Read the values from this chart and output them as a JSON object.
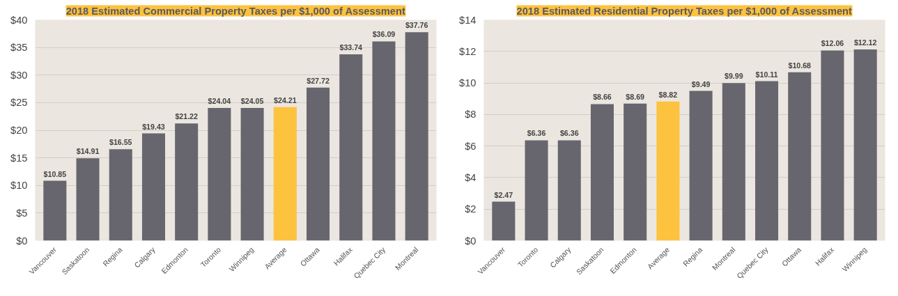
{
  "chart_data": [
    {
      "type": "bar",
      "title": "2018 Estimated Commercial Property Taxes per $1,000 of Assessment",
      "categories": [
        "Vancouver",
        "Saskatoon",
        "Regina",
        "Calgary",
        "Edmonton",
        "Toronto",
        "Winnipeg",
        "Average",
        "Ottawa",
        "Halifax",
        "Quebec City",
        "Montreal"
      ],
      "values": [
        10.85,
        14.91,
        16.55,
        19.43,
        21.22,
        24.04,
        24.05,
        24.21,
        27.72,
        33.74,
        36.09,
        37.76
      ],
      "value_labels": [
        "$10.85",
        "$14.91",
        "$16.55",
        "$19.43",
        "$21.22",
        "$24.04",
        "$24.05",
        "$24.21",
        "$27.72",
        "$33.74",
        "$36.09",
        "$37.76"
      ],
      "colors": [
        "#67666e",
        "#67666e",
        "#67666e",
        "#67666e",
        "#67666e",
        "#67666e",
        "#67666e",
        "#fdc23e",
        "#67666e",
        "#67666e",
        "#67666e",
        "#67666e"
      ],
      "ylim": [
        0,
        40
      ],
      "yticks": [
        {
          "value": 0,
          "label": "$0"
        },
        {
          "value": 5,
          "label": "$5"
        },
        {
          "value": 10,
          "label": "$10"
        },
        {
          "value": 15,
          "label": "$15"
        },
        {
          "value": 20,
          "label": "$20"
        },
        {
          "value": 25,
          "label": "$25"
        },
        {
          "value": 30,
          "label": "$30"
        },
        {
          "value": 35,
          "label": "$35"
        },
        {
          "value": 40,
          "label": "$40"
        }
      ],
      "grid": "y"
    },
    {
      "type": "bar",
      "title": "2018 Estimated Residential Property Taxes per $1,000 of Assessment",
      "categories": [
        "Vancouver",
        "Toronto",
        "Calgary",
        "Saskatoon",
        "Edmonton",
        "Average",
        "Regina",
        "Montreal",
        "Quebec City",
        "Ottawa",
        "Halifax",
        "Winnipeg"
      ],
      "values": [
        2.47,
        6.36,
        6.36,
        8.66,
        8.69,
        8.82,
        9.49,
        9.99,
        10.11,
        10.68,
        12.06,
        12.12
      ],
      "value_labels": [
        "$2.47",
        "$6.36",
        "$6.36",
        "$8.66",
        "$8.69",
        "$8.82",
        "$9.49",
        "$9.99",
        "$10.11",
        "$10.68",
        "$12.06",
        "$12.12"
      ],
      "colors": [
        "#67666e",
        "#67666e",
        "#67666e",
        "#67666e",
        "#67666e",
        "#fdc23e",
        "#67666e",
        "#67666e",
        "#67666e",
        "#67666e",
        "#67666e",
        "#67666e"
      ],
      "ylim": [
        0,
        14
      ],
      "yticks": [
        {
          "value": 0,
          "label": "$0"
        },
        {
          "value": 2,
          "label": "$2"
        },
        {
          "value": 4,
          "label": "$4"
        },
        {
          "value": 6,
          "label": "$6"
        },
        {
          "value": 8,
          "label": "$8"
        },
        {
          "value": 10,
          "label": "$10"
        },
        {
          "value": 12,
          "label": "$12"
        },
        {
          "value": 14,
          "label": "$14"
        }
      ],
      "grid": "y"
    }
  ]
}
